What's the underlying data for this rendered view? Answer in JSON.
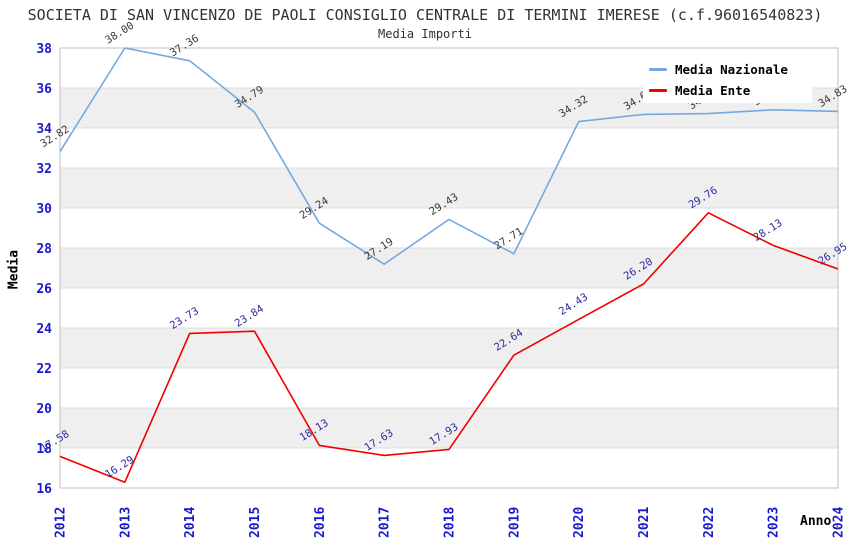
{
  "chart_data": {
    "type": "line",
    "title": "SOCIETA DI SAN VINCENZO DE PAOLI CONSIGLIO CENTRALE DI TERMINI IMERESE (c.f.96016540823)",
    "subtitle": "Media Importi",
    "xlabel": "Anno",
    "ylabel": "Media",
    "categories": [
      "2012",
      "2013",
      "2014",
      "2015",
      "2016",
      "2017",
      "2018",
      "2019",
      "2020",
      "2021",
      "2022",
      "2023",
      "2024"
    ],
    "ylim": [
      16,
      38
    ],
    "ytick_step": 2,
    "grid": {
      "band_colors": [
        "#ffffff",
        "#efefef"
      ],
      "line_color": "#dcdcdc",
      "border_color": "#c0c0c0"
    },
    "legend_position": "top-right",
    "tick_label_color": "#1a1acd",
    "series": [
      {
        "name": "Media Nazionale",
        "color": "#74a9e0",
        "label_color": "#3a3a3a",
        "values": [
          32.82,
          38.0,
          37.36,
          34.79,
          29.24,
          27.19,
          29.43,
          27.71,
          34.32,
          34.68,
          34.72,
          34.91,
          34.83
        ]
      },
      {
        "name": "Media Ente",
        "color": "#f20000",
        "label_color": "#2c2c9e",
        "values": [
          17.58,
          16.29,
          23.73,
          23.84,
          18.13,
          17.63,
          17.93,
          22.64,
          24.43,
          26.2,
          29.76,
          28.13,
          26.95
        ]
      }
    ]
  }
}
